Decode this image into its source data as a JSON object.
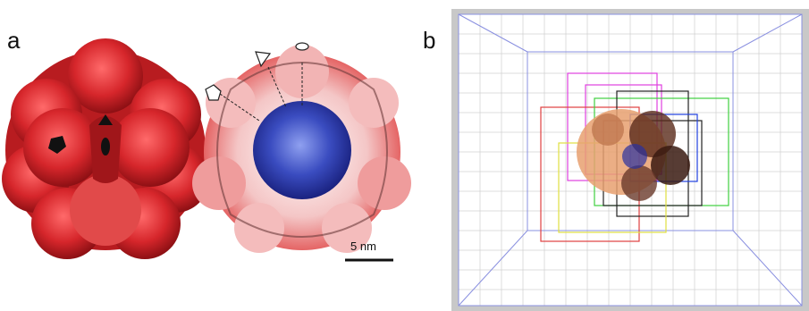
{
  "panels": {
    "a": {
      "label": "a"
    },
    "b": {
      "label": "b"
    }
  },
  "scale_bar": {
    "text": "5 nm"
  },
  "colors": {
    "shell_red": "#d6262b",
    "shell_pink": "#f2b4b4",
    "core_blue": "#2b3aa8",
    "grid_blue": "#8a90e0",
    "grid_gray": "#d0d0d0",
    "box_magenta": "#e040e0",
    "box_red": "#e04040",
    "box_green": "#40d040",
    "box_black": "#222222",
    "box_yellow": "#e0e040"
  },
  "icons": [
    "pentagon-symmetry-icon",
    "triangle-symmetry-icon",
    "ellipse-symmetry-icon"
  ]
}
